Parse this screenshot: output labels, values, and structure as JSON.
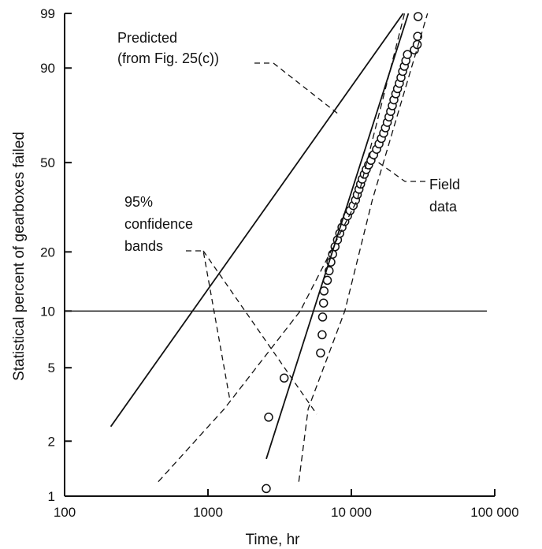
{
  "chart_data": {
    "type": "scatter",
    "title": "",
    "xlabel": "Time, hr",
    "ylabel": "Statistical percent of gearboxes failed",
    "x_scale": "log",
    "y_scale": "weibull-probability",
    "xlim": [
      100,
      100000
    ],
    "ylim": [
      1,
      99
    ],
    "x_ticks": [
      100,
      1000,
      10000,
      100000
    ],
    "x_tick_labels": [
      "100",
      "1000",
      "10 000",
      "100 000"
    ],
    "y_ticks": [
      1,
      2,
      5,
      10,
      20,
      50,
      90,
      99
    ],
    "y_tick_labels": [
      "1",
      "2",
      "5",
      "10",
      "20",
      "50",
      "90",
      "99"
    ],
    "reference_line_y": 10,
    "grid": false,
    "annotations": {
      "predicted": [
        "Predicted",
        "(from Fig. 25(c))"
      ],
      "confidence": [
        "95%",
        "confidence",
        "bands"
      ],
      "field": [
        "Field",
        "data"
      ]
    },
    "series": [
      {
        "kind": "points",
        "style": "open-circle",
        "x": [
          2550,
          2650,
          3400,
          6100,
          6250,
          6300,
          6400,
          6450,
          6800,
          7000,
          7200,
          7400,
          7700,
          8000,
          8300,
          8600,
          9000,
          9400,
          9800,
          10300,
          10700,
          11000,
          11300,
          11600,
          11900,
          12300,
          12700,
          13200,
          13700,
          14300,
          15000,
          15600,
          16200,
          16800,
          17300,
          17800,
          18300,
          18800,
          19300,
          19800,
          20400,
          21000,
          21600,
          22200,
          22800,
          23400,
          24000,
          24600,
          27500,
          28800,
          29000,
          29200
        ],
        "y": [
          1.1,
          2.7,
          4.4,
          6.0,
          7.5,
          9.3,
          11.0,
          12.7,
          14.4,
          16.1,
          17.8,
          19.5,
          21.2,
          22.9,
          24.6,
          26.3,
          28.0,
          29.7,
          31.4,
          33.1,
          35.0,
          37.0,
          39.0,
          41.0,
          43.0,
          45.0,
          47.0,
          49.0,
          51.0,
          53.5,
          56.0,
          58.5,
          61.0,
          63.5,
          66.0,
          68.5,
          71.0,
          73.5,
          76.0,
          78.5,
          81.0,
          83.0,
          85.0,
          87.0,
          89.0,
          90.5,
          92.0,
          93.5,
          94.5,
          95.5,
          96.8,
          98.8
        ]
      },
      {
        "kind": "line",
        "style": "solid",
        "x": [
          210,
          23000
        ],
        "y": [
          2.4,
          99
        ]
      },
      {
        "kind": "line",
        "style": "solid",
        "x": [
          2550,
          25000
        ],
        "y": [
          1.6,
          99
        ]
      },
      {
        "kind": "line",
        "style": "dashed",
        "x": [
          450,
          1300,
          4400,
          11000,
          23500
        ],
        "y": [
          1.2,
          3.0,
          10.0,
          35.0,
          99
        ]
      },
      {
        "kind": "line",
        "style": "dashed",
        "x": [
          4300,
          5000,
          9000,
          14000,
          34000
        ],
        "y": [
          1.2,
          3.0,
          10.0,
          35.0,
          99
        ]
      }
    ]
  }
}
